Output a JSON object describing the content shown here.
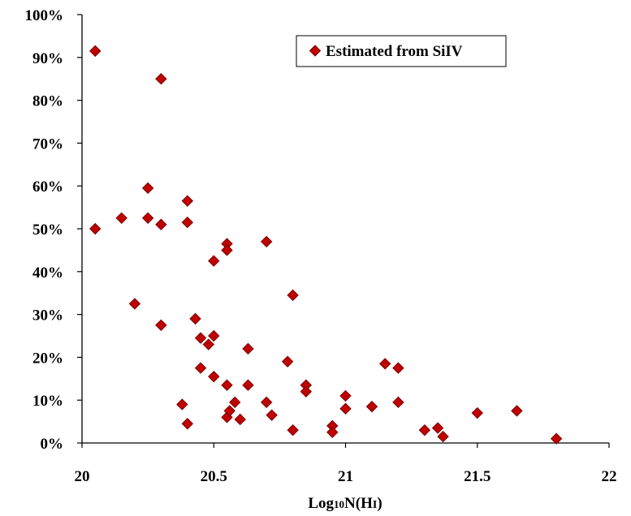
{
  "chart_data": {
    "type": "scatter",
    "title": "",
    "xlabel": {
      "main": "Log",
      "sub": "10",
      "rest": "N(H",
      "small": "I",
      "end": ")"
    },
    "ylabel": "",
    "xlim": [
      20,
      22
    ],
    "ylim": [
      0,
      100
    ],
    "x_ticks": [
      20,
      20.5,
      21,
      21.5,
      22
    ],
    "x_tick_labels": [
      "20",
      "20.5",
      "21",
      "21.5",
      "22"
    ],
    "y_ticks": [
      0,
      10,
      20,
      30,
      40,
      50,
      60,
      70,
      80,
      90,
      100
    ],
    "y_tick_labels": [
      "0%",
      "10%",
      "20%",
      "30%",
      "40%",
      "50%",
      "60%",
      "70%",
      "80%",
      "90%",
      "100%"
    ],
    "grid": false,
    "legend_position": "top-right",
    "marker_color": "#c00000",
    "marker_edge": "#7a0000",
    "series": [
      {
        "name": "Estimated from SiIV",
        "points": [
          [
            20.05,
            91.5
          ],
          [
            20.05,
            50
          ],
          [
            20.15,
            52.5
          ],
          [
            20.2,
            32.5
          ],
          [
            20.25,
            59.5
          ],
          [
            20.25,
            52.5
          ],
          [
            20.3,
            85
          ],
          [
            20.3,
            51
          ],
          [
            20.3,
            27.5
          ],
          [
            20.38,
            9
          ],
          [
            20.4,
            56.5
          ],
          [
            20.4,
            51.5
          ],
          [
            20.4,
            4.5
          ],
          [
            20.43,
            29
          ],
          [
            20.45,
            24.5
          ],
          [
            20.45,
            17.5
          ],
          [
            20.48,
            23
          ],
          [
            20.5,
            42.5
          ],
          [
            20.5,
            25
          ],
          [
            20.5,
            15.5
          ],
          [
            20.55,
            46.5
          ],
          [
            20.55,
            45
          ],
          [
            20.55,
            13.5
          ],
          [
            20.55,
            6
          ],
          [
            20.56,
            7.5
          ],
          [
            20.58,
            9.5
          ],
          [
            20.6,
            5.5
          ],
          [
            20.63,
            22
          ],
          [
            20.63,
            13.5
          ],
          [
            20.7,
            47
          ],
          [
            20.7,
            9.5
          ],
          [
            20.72,
            6.5
          ],
          [
            20.78,
            19
          ],
          [
            20.8,
            34.5
          ],
          [
            20.8,
            3
          ],
          [
            20.85,
            13.5
          ],
          [
            20.85,
            12
          ],
          [
            20.95,
            4
          ],
          [
            20.95,
            2.5
          ],
          [
            21,
            11
          ],
          [
            21,
            8
          ],
          [
            21.1,
            8.5
          ],
          [
            21.15,
            18.5
          ],
          [
            21.2,
            17.5
          ],
          [
            21.2,
            9.5
          ],
          [
            21.3,
            3
          ],
          [
            21.35,
            3.5
          ],
          [
            21.37,
            1.5
          ],
          [
            21.5,
            7
          ],
          [
            21.65,
            7.5
          ],
          [
            21.8,
            1
          ]
        ]
      }
    ]
  }
}
